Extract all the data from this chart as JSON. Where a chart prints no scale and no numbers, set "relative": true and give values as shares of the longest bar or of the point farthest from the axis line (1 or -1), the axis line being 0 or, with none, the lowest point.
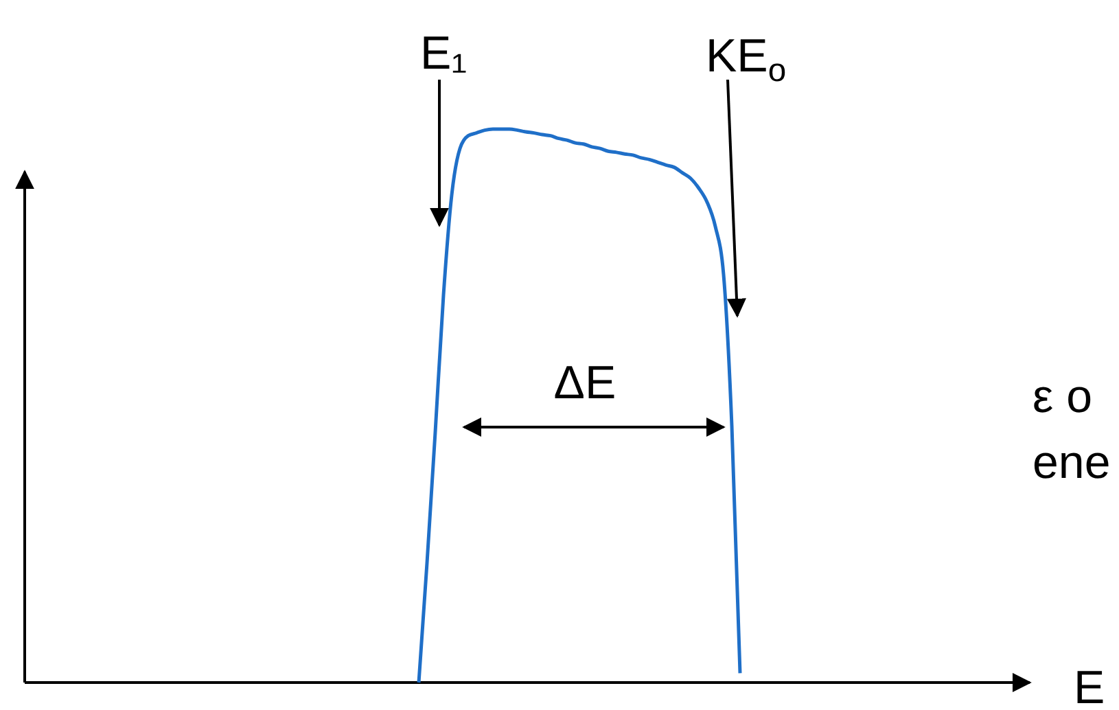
{
  "chart_data": {
    "type": "line",
    "relative": true,
    "categories": [
      null,
      null,
      null,
      null,
      null,
      null,
      null,
      null,
      null,
      null,
      null,
      null,
      null,
      null,
      null,
      null,
      null,
      null,
      null,
      null,
      null,
      null,
      null,
      null,
      null,
      null,
      null,
      null,
      null,
      null,
      null,
      null,
      null,
      null,
      null,
      null,
      null,
      null,
      null,
      null
    ],
    "series": [
      {
        "color": "#1f6fc8",
        "values": [
          0,
          0.216,
          0.452,
          0.7,
          0.881,
          0.965,
          0.988,
          0.993,
          0.998,
          1,
          1,
          1,
          0.998,
          0.995,
          0.993,
          0.99,
          0.988,
          0.983,
          0.98,
          0.975,
          0.973,
          0.968,
          0.965,
          0.96,
          0.958,
          0.955,
          0.953,
          0.948,
          0.945,
          0.94,
          0.935,
          0.931,
          0.921,
          0.911,
          0.893,
          0.868,
          0.824,
          0.737,
          0.464,
          0.017
        ]
      }
    ],
    "annotations": [
      "E₁",
      "KE$_{o}$",
      "ΔE",
      "ε o",
      "ene",
      "E"
    ],
    "marker": "none",
    "line_style": "solid"
  }
}
